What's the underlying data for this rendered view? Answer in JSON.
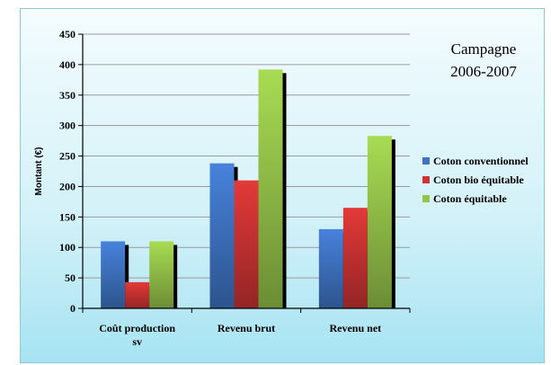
{
  "chart_data": {
    "type": "bar",
    "title_lines": [
      "Campagne",
      "2006-2007"
    ],
    "ylabel": "Montant (€)",
    "xlabel": "",
    "categories": [
      [
        "Coût production",
        "sv"
      ],
      [
        "Revenu brut"
      ],
      [
        "Revenu net"
      ]
    ],
    "ylim": [
      0,
      450
    ],
    "yticks": [
      "0",
      "50",
      "100",
      "150",
      "200",
      "250",
      "300",
      "350",
      "400",
      "450"
    ],
    "series": [
      {
        "name": "Coton conventionnel",
        "color": "#3f74c4",
        "values": [
          110,
          238,
          130
        ]
      },
      {
        "name": "Coton bio équitable",
        "color": "#cc3333",
        "values": [
          43,
          210,
          165
        ]
      },
      {
        "name": "Coton équitable",
        "color": "#96c44a",
        "values": [
          110,
          392,
          283
        ]
      }
    ],
    "grid": true,
    "legend_position": "right"
  }
}
